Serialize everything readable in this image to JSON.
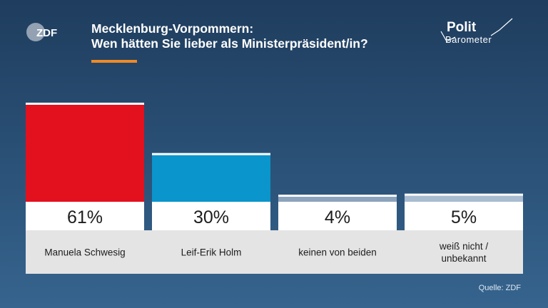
{
  "header": {
    "title_line1": "Mecklenburg-Vorpommern:",
    "title_line2": "Wen hätten Sie lieber als Ministerpräsident/in?",
    "brand_left": "ZDF",
    "brand_right_line1": "Polit",
    "brand_right_line2": "Barometer"
  },
  "colors": {
    "accent": "#f08a24",
    "background_top": "#1f3d5e",
    "background_bottom": "#36648e"
  },
  "chart_data": {
    "type": "bar",
    "categories": [
      "Manuela Schwesig",
      "Leif-Erik Holm",
      "keinen von beiden",
      "weiß nicht / unbekannt"
    ],
    "category_lines": [
      [
        "Manuela Schwesig"
      ],
      [
        "Leif-Erik Holm"
      ],
      [
        "keinen von beiden"
      ],
      [
        "weiß nicht /",
        "unbekannt"
      ]
    ],
    "values": [
      61,
      30,
      4,
      5
    ],
    "value_labels": [
      "61%",
      "30%",
      "4%",
      "5%"
    ],
    "colors": [
      "#e3101e",
      "#0a95cc",
      "#8ca3bc",
      "#a9bcd0"
    ],
    "ylim": [
      0,
      61
    ],
    "grid": false,
    "legend": "none"
  },
  "footer": {
    "source": "Quelle: ZDF"
  }
}
